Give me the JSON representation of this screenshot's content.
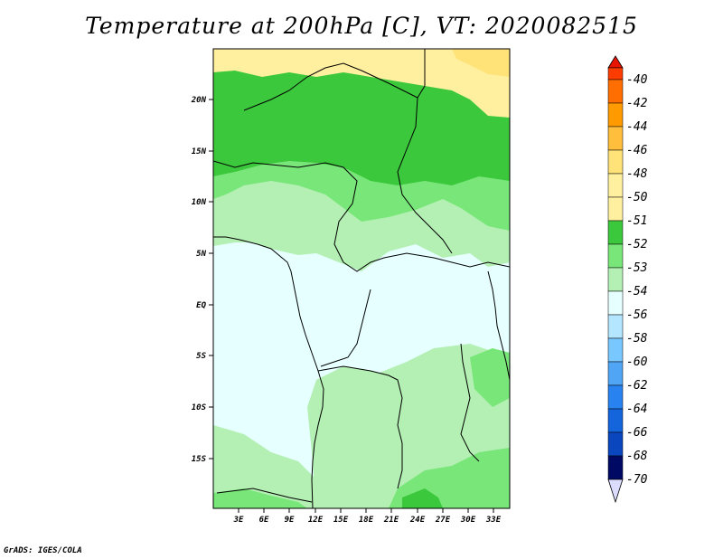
{
  "title": "Temperature at 200hPa [C], VT: 2020082515",
  "credit": "GrADS: IGES/COLA",
  "colors": {
    "c_50": "#fff0a0",
    "c_51": "#3cc83c",
    "c_52": "#78e678",
    "c_53": "#b4f0b4",
    "c_54": "#e6ffff"
  },
  "map": {
    "lat_labels": [
      "20N",
      "15N",
      "10N",
      "5N",
      "EQ",
      "5S",
      "10S",
      "15S"
    ],
    "lon_labels": [
      "3E",
      "6E",
      "9E",
      "12E",
      "15E",
      "18E",
      "21E",
      "24E",
      "27E",
      "30E",
      "33E"
    ]
  },
  "colorbar": {
    "labels": [
      "-40",
      "-42",
      "-44",
      "-46",
      "-48",
      "-50",
      "-51",
      "-52",
      "-53",
      "-54",
      "-56",
      "-58",
      "-60",
      "-62",
      "-64",
      "-66",
      "-68",
      "-70"
    ],
    "colors": [
      "#e81400",
      "#ff3c00",
      "#ff6e00",
      "#ff9b00",
      "#ffbe3c",
      "#ffe278",
      "#fff0a0",
      "#3cc83c",
      "#78e678",
      "#b4f0b4",
      "#e6ffff",
      "#b4e6ff",
      "#78c8ff",
      "#50a5f5",
      "#2882f0",
      "#1464dc",
      "#0a46be",
      "#0a2896",
      "#000a64",
      "#dcdcff"
    ]
  }
}
